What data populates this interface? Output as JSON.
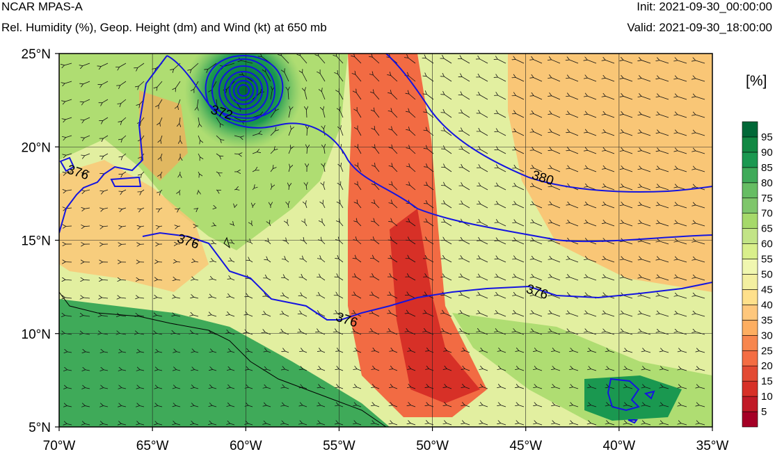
{
  "header": {
    "model": "NCAR MPAS-A",
    "subtitle": "Rel. Humidity (%), Geop. Height (dm) and Wind (kt) at 650 mb",
    "init": "Init: 2021-09-30_00:00:00",
    "valid": "Valid: 2021-09-30_18:00:00"
  },
  "map": {
    "lon_range": [
      -70,
      -35
    ],
    "lat_range": [
      5,
      25
    ],
    "lon_ticks": [
      "70°W",
      "65°W",
      "60°W",
      "55°W",
      "50°W",
      "45°W",
      "40°W",
      "35°W"
    ],
    "lat_ticks": [
      "5°N",
      "10°N",
      "15°N",
      "20°N",
      "25°N"
    ],
    "lon_values": [
      -70,
      -65,
      -60,
      -55,
      -50,
      -45,
      -40,
      -35
    ],
    "lat_values": [
      5,
      10,
      15,
      20,
      25
    ],
    "grid": true,
    "contour_color": "#1414e0",
    "contour_labels": [
      {
        "text": "376",
        "lon": -69.0,
        "lat": 18.6
      },
      {
        "text": "376",
        "lon": -63.1,
        "lat": 14.9
      },
      {
        "text": "376",
        "lon": -54.6,
        "lat": 10.7
      },
      {
        "text": "376",
        "lon": -44.4,
        "lat": 12.2
      },
      {
        "text": "380",
        "lon": -44.1,
        "lat": 18.3
      },
      {
        "text": "372",
        "lon": -61.3,
        "lat": 21.8
      }
    ],
    "cyclone_center": {
      "lon": -60.0,
      "lat": 23.0
    }
  },
  "colorbar": {
    "title": "[%]",
    "labels": [
      "5",
      "10",
      "15",
      "20",
      "25",
      "30",
      "35",
      "40",
      "45",
      "50",
      "55",
      "60",
      "65",
      "70",
      "75",
      "80",
      "85",
      "90",
      "95"
    ],
    "colors": [
      "#a50026",
      "#c11a27",
      "#d73027",
      "#e34a33",
      "#f46d43",
      "#f7864e",
      "#fdae61",
      "#fec77c",
      "#fee08b",
      "#f3efa0",
      "#f0f7b0",
      "#d9ef8b",
      "#c2e486",
      "#a6d96a",
      "#7fc66b",
      "#66bd63",
      "#3faa59",
      "#1a9850",
      "#118843",
      "#006837"
    ]
  }
}
